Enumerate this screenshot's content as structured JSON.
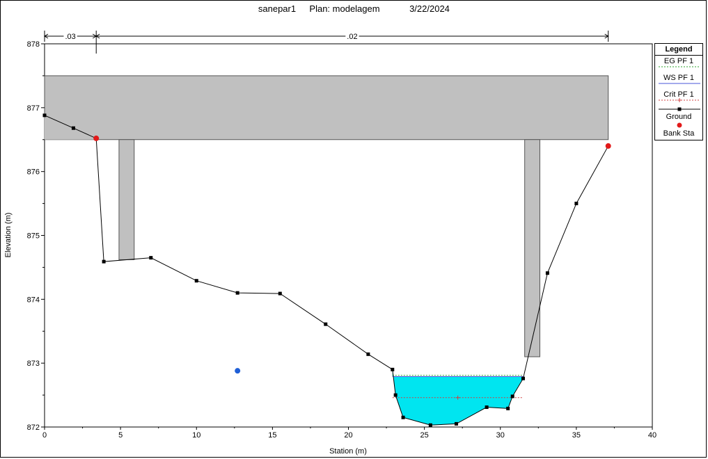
{
  "title": {
    "name": "sanepar1",
    "plan": "Plan: modelagem",
    "date": "3/22/2024"
  },
  "colors": {
    "water": "#00e5f0",
    "deck": "#c0c0c0",
    "bank": "#e21a1a",
    "marker": "#1f5fd6"
  },
  "legend": {
    "title": "Legend",
    "items": [
      {
        "label": "EG PF 1",
        "style": "dashed-green"
      },
      {
        "label": "WS PF 1",
        "style": "solid-blue"
      },
      {
        "label": "Crit PF 1",
        "style": "dashed-red-plus"
      },
      {
        "label": "Ground",
        "style": "black-square"
      },
      {
        "label": "Bank Sta",
        "style": "red-dot"
      }
    ]
  },
  "chart_data": {
    "type": "line",
    "xlabel": "Station (m)",
    "ylabel": "Elevation (m)",
    "xlim": [
      0,
      40
    ],
    "ylim": [
      872,
      878
    ],
    "xticks": [
      0,
      5,
      10,
      15,
      20,
      25,
      30,
      35,
      40
    ],
    "yticks": [
      872,
      873,
      874,
      875,
      876,
      877,
      878
    ],
    "ground": {
      "x": [
        0,
        1.9,
        3.4,
        3.9,
        7.0,
        10.0,
        12.7,
        15.5,
        18.5,
        21.3,
        22.9,
        23.1,
        23.6,
        25.4,
        27.1,
        29.1,
        30.5,
        30.8,
        31.5,
        33.1,
        35.0,
        37.1
      ],
      "y": [
        876.88,
        876.68,
        876.52,
        874.59,
        874.65,
        874.29,
        874.1,
        874.09,
        873.61,
        873.14,
        872.9,
        872.5,
        872.15,
        872.03,
        872.05,
        872.31,
        872.29,
        872.48,
        872.76,
        874.41,
        875.5,
        876.4
      ]
    },
    "bank_stations": [
      {
        "x": 3.4,
        "y": 876.52
      },
      {
        "x": 37.1,
        "y": 876.4
      }
    ],
    "deck": {
      "x_start": 0,
      "x_end": 37.1,
      "low_chord": 876.5,
      "high_chord": 877.5
    },
    "piers": [
      {
        "x_start": 4.9,
        "x_end": 5.9,
        "bottom": 874.62
      },
      {
        "x_start": 31.6,
        "x_end": 32.6,
        "bottom": 873.1
      }
    ],
    "water_surface": {
      "x_start": 22.9,
      "x_end": 31.5,
      "ws": 872.79,
      "eg": 872.81,
      "crit": 872.46
    },
    "extra_point": {
      "x": 12.7,
      "y": 872.88
    },
    "manning": [
      {
        "label": ".03",
        "x_start": 0,
        "x_end": 3.4
      },
      {
        "label": ".02",
        "x_start": 3.4,
        "x_end": 37.1
      }
    ]
  }
}
